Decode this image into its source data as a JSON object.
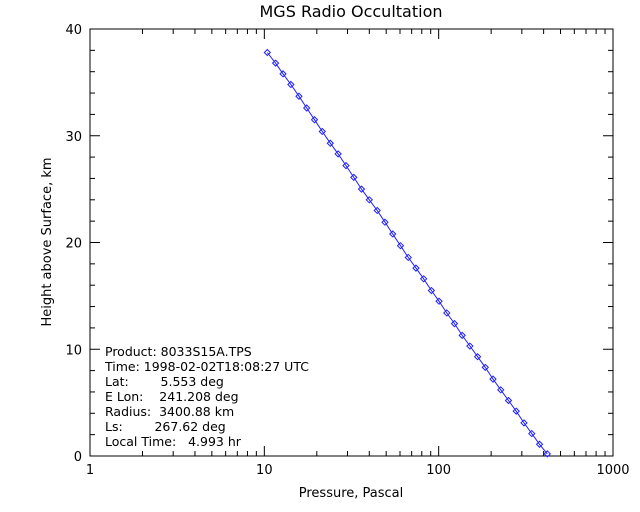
{
  "chart_data": {
    "type": "line",
    "title": "MGS Radio Occultation",
    "xlabel": "Pressure, Pascal",
    "ylabel": "Height above Surface, km",
    "xscale": "log",
    "xlim": [
      1,
      1000
    ],
    "ylim": [
      0,
      40
    ],
    "x_ticks": [
      "1",
      "10",
      "100",
      "1000"
    ],
    "y_ticks": [
      "0",
      "10",
      "20",
      "30",
      "40"
    ],
    "grid": false,
    "line_color": "#1f1fff",
    "marker": "diamond",
    "series": [
      {
        "x": [
          10.4,
          11.6,
          12.8,
          14.2,
          15.8,
          17.5,
          19.4,
          21.5,
          23.9,
          26.5,
          29.4,
          32.6,
          36.1,
          40.0,
          44.4,
          49.2,
          54.5,
          60.4,
          66.9,
          74.1,
          82.0,
          90.8,
          100.5,
          111.3,
          123.2,
          136.4,
          151.0,
          167.2,
          185.1,
          205.0,
          227.0,
          251.4,
          278.5,
          308.6,
          342.0,
          379.0,
          420.0
        ],
        "y": [
          37.8,
          36.8,
          35.8,
          34.8,
          33.7,
          32.6,
          31.5,
          30.4,
          29.3,
          28.3,
          27.2,
          26.1,
          25.0,
          24.0,
          23.0,
          21.9,
          20.8,
          19.7,
          18.6,
          17.6,
          16.6,
          15.5,
          14.5,
          13.4,
          12.4,
          11.3,
          10.3,
          9.3,
          8.3,
          7.2,
          6.2,
          5.2,
          4.2,
          3.1,
          2.1,
          1.1,
          0.2
        ]
      }
    ]
  },
  "info": {
    "product": "Product: 8033S15A.TPS",
    "time": "Time: 1998-02-02T18:08:27 UTC",
    "lat": "Lat:        5.553 deg",
    "elon": "E Lon:    241.208 deg",
    "radius": "Radius:  3400.88 km",
    "ls": "Ls:        267.62 deg",
    "local_time": "Local Time:   4.993 hr"
  }
}
